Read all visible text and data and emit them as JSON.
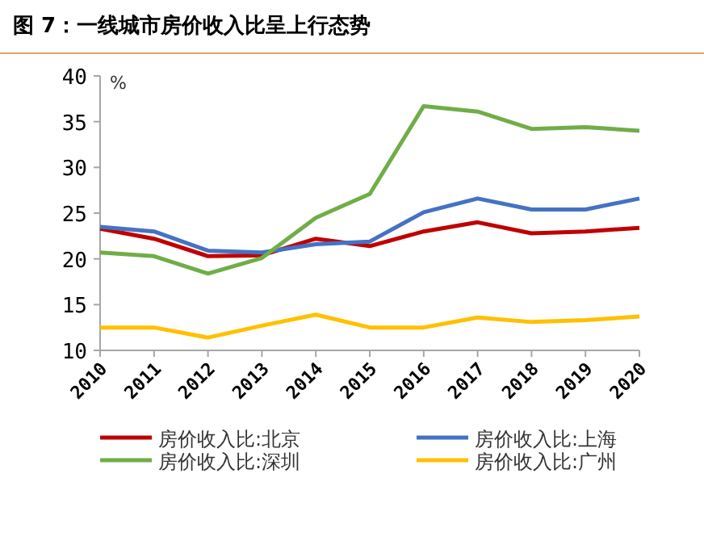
{
  "chart_data": {
    "type": "line",
    "title": "图 7：一线城市房价收入比呈上行态势",
    "ylabel": "%",
    "categories": [
      "2010",
      "2011",
      "2012",
      "2013",
      "2014",
      "2015",
      "2016",
      "2017",
      "2018",
      "2019",
      "2020"
    ],
    "series": [
      {
        "name": "房价收入比:北京",
        "color": "#c00000",
        "values": [
          23.3,
          22.2,
          20.3,
          20.4,
          22.2,
          21.4,
          23.0,
          24.0,
          22.8,
          23.0,
          23.4
        ]
      },
      {
        "name": "房价收入比:上海",
        "color": "#4472c4",
        "values": [
          23.5,
          23.0,
          20.9,
          20.7,
          21.6,
          21.9,
          25.1,
          26.6,
          25.4,
          25.4,
          26.6
        ]
      },
      {
        "name": "房价收入比:深圳",
        "color": "#70ad47",
        "values": [
          20.7,
          20.3,
          18.4,
          20.1,
          24.5,
          27.1,
          36.7,
          36.1,
          34.2,
          34.4,
          34.0
        ]
      },
      {
        "name": "房价收入比:广州",
        "color": "#ffc000",
        "values": [
          12.5,
          12.5,
          11.4,
          12.7,
          13.9,
          12.5,
          12.5,
          13.6,
          13.1,
          13.3,
          13.7
        ]
      }
    ],
    "ylim": [
      10,
      40
    ],
    "yticks": [
      10,
      15,
      20,
      25,
      30,
      35,
      40
    ],
    "grid": false,
    "legend": "bottom",
    "marker": "none",
    "line_style": "solid"
  }
}
